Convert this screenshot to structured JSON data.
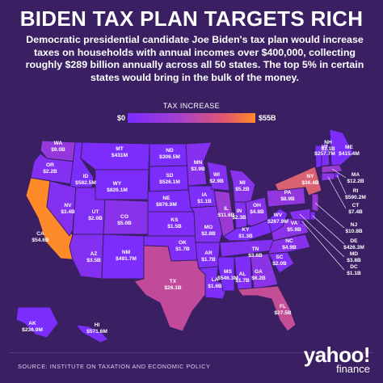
{
  "title": "BIDEN TAX PLAN TARGETS RICH",
  "subtitle": "Democratic presidential candidate Joe Biden's tax plan would increase taxes on households with annual incomes over $400,000, collecting roughly $289 billion annually across all 50 states. The top 5% in certain states would bring in the bulk of the money.",
  "legend": {
    "title": "TAX INCREASE",
    "min": "$0",
    "max": "$55B"
  },
  "colors": {
    "background": "#3a1f63",
    "low": "#7a2cff",
    "mid": "#c24a9a",
    "high": "#ff8a2a",
    "state_border": "#3a1f63"
  },
  "states": [
    {
      "abbr": "WA",
      "value": "$9.0B",
      "level": 0.18
    },
    {
      "abbr": "OR",
      "value": "$2.2B",
      "level": 0.06
    },
    {
      "abbr": "CA",
      "value": "$54.6B",
      "level": 1.0
    },
    {
      "abbr": "ID",
      "value": "$582.5M",
      "level": 0.02
    },
    {
      "abbr": "NV",
      "value": "$3.4B",
      "level": 0.07
    },
    {
      "abbr": "MT",
      "value": "$431M",
      "level": 0.02
    },
    {
      "abbr": "WY",
      "value": "$826.1M",
      "level": 0.02
    },
    {
      "abbr": "UT",
      "value": "$2.0B",
      "level": 0.05
    },
    {
      "abbr": "AZ",
      "value": "$3.5B",
      "level": 0.07
    },
    {
      "abbr": "CO",
      "value": "$5.0B",
      "level": 0.1
    },
    {
      "abbr": "NM",
      "value": "$491.7M",
      "level": 0.02
    },
    {
      "abbr": "ND",
      "value": "$306.5M",
      "level": 0.01
    },
    {
      "abbr": "SD",
      "value": "$526.1M",
      "level": 0.02
    },
    {
      "abbr": "NE",
      "value": "$876.9M",
      "level": 0.02
    },
    {
      "abbr": "KS",
      "value": "$1.5B",
      "level": 0.04
    },
    {
      "abbr": "OK",
      "value": "$1.7B",
      "level": 0.04
    },
    {
      "abbr": "TX",
      "value": "$26.1B",
      "level": 0.5
    },
    {
      "abbr": "MN",
      "value": "$3.9B",
      "level": 0.08
    },
    {
      "abbr": "IA",
      "value": "$1.1B",
      "level": 0.03
    },
    {
      "abbr": "MO",
      "value": "$2.8B",
      "level": 0.06
    },
    {
      "abbr": "AR",
      "value": "$1.7B",
      "level": 0.04
    },
    {
      "abbr": "LA",
      "value": "$1.6B",
      "level": 0.04
    },
    {
      "abbr": "WI",
      "value": "$2.9B",
      "level": 0.06
    },
    {
      "abbr": "IL",
      "value": "$11.6B",
      "level": 0.22
    },
    {
      "abbr": "MI",
      "value": "$5.2B",
      "level": 0.1
    },
    {
      "abbr": "IN",
      "value": "$2.3B",
      "level": 0.06
    },
    {
      "abbr": "OH",
      "value": "$4.8B",
      "level": 0.09
    },
    {
      "abbr": "KY",
      "value": "$1.3B",
      "level": 0.03
    },
    {
      "abbr": "TN",
      "value": "$3.6B",
      "level": 0.07
    },
    {
      "abbr": "MS",
      "value": "$546.3M",
      "level": 0.02
    },
    {
      "abbr": "AL",
      "value": "$1.7B",
      "level": 0.04
    },
    {
      "abbr": "GA",
      "value": "$6.2B",
      "level": 0.12
    },
    {
      "abbr": "FL",
      "value": "$27.5B",
      "level": 0.52
    },
    {
      "abbr": "SC",
      "value": "$2.0B",
      "level": 0.05
    },
    {
      "abbr": "NC",
      "value": "$4.9B",
      "level": 0.09
    },
    {
      "abbr": "VA",
      "value": "$5.9B",
      "level": 0.11
    },
    {
      "abbr": "WV",
      "value": "$267.9M",
      "level": 0.01
    },
    {
      "abbr": "PA",
      "value": "$8.9B",
      "level": 0.17
    },
    {
      "abbr": "NY",
      "value": "$36.4B",
      "level": 0.68
    },
    {
      "abbr": "VT",
      "value": "$257.7M",
      "level": 0.01
    },
    {
      "abbr": "NH",
      "value": "$1.1B",
      "level": 0.03
    },
    {
      "abbr": "ME",
      "value": "$415.4M",
      "level": 0.02
    },
    {
      "abbr": "MA",
      "value": "$12.2B",
      "level": 0.23
    },
    {
      "abbr": "RI",
      "value": "$590.2M",
      "level": 0.02
    },
    {
      "abbr": "CT",
      "value": "$7.4B",
      "level": 0.14
    },
    {
      "abbr": "NJ",
      "value": "$10.8B",
      "level": 0.2
    },
    {
      "abbr": "DE",
      "value": "$426.3M",
      "level": 0.02
    },
    {
      "abbr": "MD",
      "value": "$3.8B",
      "level": 0.08
    },
    {
      "abbr": "DC",
      "value": "$1.1B",
      "level": 0.03
    },
    {
      "abbr": "AK",
      "value": "$236.9M",
      "level": 0.01
    },
    {
      "abbr": "HI",
      "value": "$571.6M",
      "level": 0.02
    }
  ],
  "source": "SOURCE:  INSTITUTE ON TAXATION AND ECONOMIC POLICY",
  "brand": {
    "name": "yahoo!",
    "sub": "finance"
  }
}
